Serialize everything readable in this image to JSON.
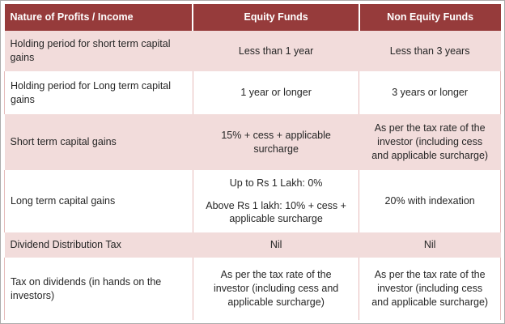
{
  "table": {
    "columns": [
      "Nature of Profits / Income",
      "Equity Funds",
      "Non Equity Funds"
    ],
    "rows": [
      {
        "label": "Holding period for short term capital gains",
        "equity": [
          "Less than 1 year"
        ],
        "non_equity": [
          "Less than 3 years"
        ]
      },
      {
        "label": "Holding period for Long term capital gains",
        "equity": [
          "1 year or longer"
        ],
        "non_equity": [
          "3 years or longer"
        ]
      },
      {
        "label": "Short term capital gains",
        "equity": [
          "15% + cess + applicable surcharge"
        ],
        "non_equity": [
          "As per the tax rate of the investor (including cess and applicable surcharge)"
        ]
      },
      {
        "label": "Long term capital gains",
        "equity": [
          "Up to Rs 1 Lakh: 0%",
          "Above Rs 1 lakh: 10% + cess + applicable surcharge"
        ],
        "non_equity": [
          "20% with indexation"
        ]
      },
      {
        "label": "Dividend Distribution Tax",
        "equity": [
          "Nil"
        ],
        "non_equity": [
          "Nil"
        ]
      },
      {
        "label": "Tax on dividends (in hands on the investors)",
        "equity": [
          "As per the tax rate of the investor (including cess and applicable surcharge)"
        ],
        "non_equity": [
          "As per the tax rate of the investor (including cess and applicable surcharge)"
        ]
      }
    ],
    "colors": {
      "header_bg": "#963b3b",
      "band_pink": "#f2dcdb",
      "border_pink": "#e5bbba",
      "outer_border": "#ababab",
      "header_text": "#ffffff",
      "body_text": "#262626"
    }
  }
}
